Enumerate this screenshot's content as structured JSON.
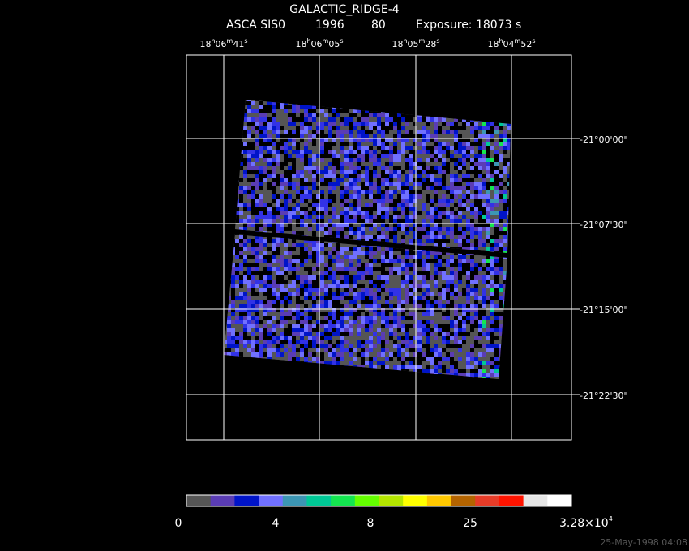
{
  "header": {
    "title": "GALACTIC_RIDGE-4",
    "instrument": "ASCA SIS0",
    "year": "1996",
    "sequence": "80",
    "exposure": "Exposure: 18073 s"
  },
  "ra_labels": [
    [
      "18",
      "h",
      "06",
      "m",
      "41",
      "s"
    ],
    [
      "18",
      "h",
      "06",
      "m",
      "05",
      "s"
    ],
    [
      "18",
      "h",
      "05",
      "m",
      "28",
      "s"
    ],
    [
      "18",
      "h",
      "04",
      "m",
      "52",
      "s"
    ]
  ],
  "dec_labels": [
    "-21°00'00\"",
    "-21°07'30\"",
    "-21°15'00\"",
    "-21°22'30\""
  ],
  "colorbar": {
    "colors": [
      "#555555",
      "#5a3cb4",
      "#0014c8",
      "#7070ff",
      "#3c96b4",
      "#00c896",
      "#14e650",
      "#64ff00",
      "#b4e600",
      "#ffff00",
      "#ffc800",
      "#b46400",
      "#e63c28",
      "#ff1400",
      "#e6e6e6",
      "#ffffff"
    ],
    "labels": [
      "0",
      "4",
      "8",
      "25"
    ],
    "max_label": {
      "mantissa": "3.28×10",
      "exponent": "4"
    }
  },
  "timestamp": "25-May-1998 04:08"
}
